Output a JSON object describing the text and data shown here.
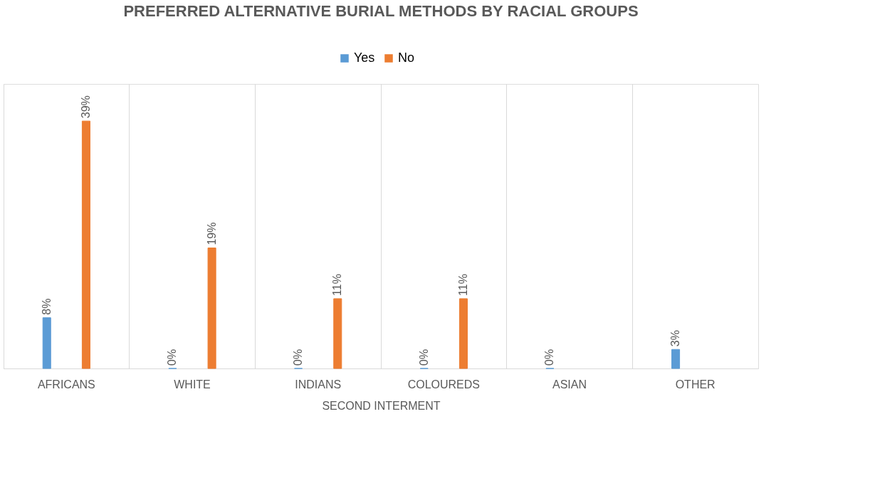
{
  "chart_data": {
    "type": "bar",
    "title": "PREFERRED ALTERNATIVE BURIAL METHODS BY RACIAL GROUPS",
    "xlabel": "SECOND INTERMENT",
    "categories": [
      "AFRICANS",
      "WHITE",
      "INDIANS",
      "COLOUREDS",
      "ASIAN",
      "OTHER"
    ],
    "series": [
      {
        "name": "Yes",
        "color": "#5b9bd5",
        "values": [
          8,
          0,
          0,
          0,
          0,
          3
        ],
        "value_labels": [
          "8%",
          "0%",
          "0%",
          "0%",
          "0%",
          "3%"
        ]
      },
      {
        "name": "No",
        "color": "#ed7d31",
        "values": [
          39,
          19,
          11,
          11,
          null,
          null
        ],
        "value_labels": [
          "39%",
          "19%",
          "11%",
          "11%",
          null,
          null
        ]
      }
    ],
    "legend": "top",
    "grid": "x"
  }
}
